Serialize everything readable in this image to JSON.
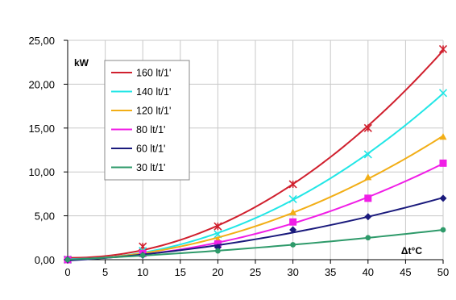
{
  "chart_data": {
    "type": "scatter",
    "unit_label": "kW",
    "x_axis_label": "Δt°C",
    "xlim": [
      0,
      50
    ],
    "ylim": [
      0,
      25
    ],
    "x_ticks": [
      "0",
      "5",
      "10",
      "15",
      "20",
      "25",
      "30",
      "35",
      "40",
      "45",
      "50"
    ],
    "y_ticks": [
      "0,00",
      "5,00",
      "10,00",
      "15,00",
      "20,00",
      "25,00"
    ],
    "grid": true,
    "legend_position": "top-left",
    "series": [
      {
        "name": "160 lt/1'",
        "color": "#d0202e",
        "marker": "x-star",
        "x": [
          0,
          10,
          20,
          30,
          40,
          50
        ],
        "y": [
          0,
          1.5,
          3.8,
          8.6,
          15.0,
          24.0
        ]
      },
      {
        "name": "140 lt/1'",
        "color": "#22e6e6",
        "marker": "x",
        "x": [
          0,
          10,
          20,
          30,
          40,
          50
        ],
        "y": [
          0,
          1.0,
          2.9,
          6.9,
          12.0,
          19.0
        ]
      },
      {
        "name": "120 lt/1'",
        "color": "#f2ae16",
        "marker": "triangle",
        "x": [
          0,
          10,
          20,
          30,
          40,
          50
        ],
        "y": [
          0,
          0.8,
          2.3,
          5.4,
          9.4,
          14.0
        ]
      },
      {
        "name": "80 lt/1'",
        "color": "#f01ee6",
        "marker": "square",
        "x": [
          0,
          10,
          20,
          30,
          40,
          50
        ],
        "y": [
          0,
          0.7,
          1.8,
          4.3,
          7.0,
          11.0
        ]
      },
      {
        "name": "60 lt/1'",
        "color": "#1a1a7c",
        "marker": "diamond",
        "x": [
          0,
          10,
          20,
          30,
          40,
          50
        ],
        "y": [
          0,
          0.5,
          1.4,
          3.4,
          4.9,
          7.0
        ]
      },
      {
        "name": "30 lt/1'",
        "color": "#2e9a6a",
        "marker": "circle",
        "x": [
          0,
          10,
          20,
          30,
          40,
          50
        ],
        "y": [
          0,
          0.5,
          1.0,
          1.7,
          2.5,
          3.4
        ]
      }
    ]
  }
}
